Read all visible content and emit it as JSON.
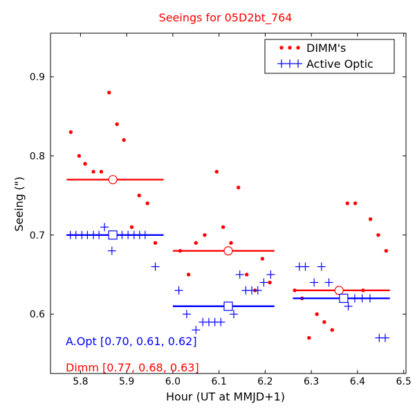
{
  "chart_data": {
    "type": "scatter",
    "title": "Seeings for 05D2bt_764",
    "xlabel": "Hour (UT at MMJD+1)",
    "ylabel": "Seeing (\")",
    "xlim": [
      5.735,
      6.505
    ],
    "ylim": [
      0.525,
      0.955
    ],
    "x_ticks": [
      5.8,
      5.9,
      6.0,
      6.1,
      6.2,
      6.3,
      6.4,
      6.5
    ],
    "x_tick_labels": [
      "5.8",
      "5.9",
      "6.0",
      "6.1",
      "6.2",
      "6.3",
      "6.4",
      "6.5"
    ],
    "y_ticks": [
      0.6,
      0.7,
      0.8,
      0.9
    ],
    "y_tick_labels": [
      "0.6",
      "0.7",
      "0.8",
      "0.9"
    ],
    "legend": {
      "position": "top-right",
      "entries": [
        {
          "label": "DIMM's",
          "marker": "dot",
          "color": "#ff0000"
        },
        {
          "label": "Active Optic",
          "marker": "plus",
          "color": "#0000ff"
        }
      ]
    },
    "annotations": {
      "aopt": "A.Opt [0.70, 0.61, 0.62]",
      "dimm": "Dimm [0.77, 0.68, 0.63]"
    },
    "series": [
      {
        "name": "DIMM's",
        "color": "#ff0000",
        "marker": "dot",
        "points": [
          [
            5.779,
            0.83
          ],
          [
            5.797,
            0.8
          ],
          [
            5.81,
            0.79
          ],
          [
            5.828,
            0.78
          ],
          [
            5.845,
            0.78
          ],
          [
            5.862,
            0.88
          ],
          [
            5.879,
            0.84
          ],
          [
            5.894,
            0.82
          ],
          [
            5.911,
            0.71
          ],
          [
            5.927,
            0.75
          ],
          [
            5.945,
            0.74
          ],
          [
            5.962,
            0.69
          ],
          [
            6.016,
            0.68
          ],
          [
            6.034,
            0.65
          ],
          [
            6.05,
            0.69
          ],
          [
            6.069,
            0.7
          ],
          [
            6.095,
            0.78
          ],
          [
            6.109,
            0.71
          ],
          [
            6.126,
            0.69
          ],
          [
            6.142,
            0.76
          ],
          [
            6.16,
            0.65
          ],
          [
            6.178,
            0.63
          ],
          [
            6.194,
            0.67
          ],
          [
            6.21,
            0.64
          ],
          [
            6.264,
            0.63
          ],
          [
            6.28,
            0.62
          ],
          [
            6.295,
            0.57
          ],
          [
            6.312,
            0.6
          ],
          [
            6.328,
            0.59
          ],
          [
            6.345,
            0.58
          ],
          [
            6.362,
            0.63
          ],
          [
            6.378,
            0.74
          ],
          [
            6.395,
            0.74
          ],
          [
            6.412,
            0.63
          ],
          [
            6.428,
            0.72
          ],
          [
            6.445,
            0.7
          ],
          [
            6.462,
            0.68
          ]
        ]
      },
      {
        "name": "Active Optic",
        "color": "#0000ff",
        "marker": "plus",
        "points": [
          [
            5.778,
            0.7
          ],
          [
            5.79,
            0.7
          ],
          [
            5.803,
            0.7
          ],
          [
            5.815,
            0.7
          ],
          [
            5.828,
            0.7
          ],
          [
            5.84,
            0.7
          ],
          [
            5.852,
            0.71
          ],
          [
            5.865,
            0.7
          ],
          [
            5.878,
            0.7
          ],
          [
            5.868,
            0.68
          ],
          [
            5.89,
            0.7
          ],
          [
            5.903,
            0.7
          ],
          [
            5.916,
            0.7
          ],
          [
            5.928,
            0.7
          ],
          [
            5.94,
            0.7
          ],
          [
            5.962,
            0.66
          ],
          [
            6.013,
            0.63
          ],
          [
            6.03,
            0.6
          ],
          [
            6.05,
            0.58
          ],
          [
            6.065,
            0.59
          ],
          [
            6.078,
            0.59
          ],
          [
            6.091,
            0.59
          ],
          [
            6.104,
            0.59
          ],
          [
            6.132,
            0.6
          ],
          [
            6.145,
            0.65
          ],
          [
            6.158,
            0.63
          ],
          [
            6.171,
            0.63
          ],
          [
            6.184,
            0.63
          ],
          [
            6.197,
            0.64
          ],
          [
            6.212,
            0.65
          ],
          [
            6.274,
            0.66
          ],
          [
            6.287,
            0.66
          ],
          [
            6.306,
            0.64
          ],
          [
            6.322,
            0.66
          ],
          [
            6.338,
            0.64
          ],
          [
            6.355,
            0.63
          ],
          [
            6.38,
            0.61
          ],
          [
            6.394,
            0.62
          ],
          [
            6.41,
            0.62
          ],
          [
            6.427,
            0.62
          ],
          [
            6.447,
            0.57
          ],
          [
            6.46,
            0.57
          ]
        ]
      }
    ],
    "averages": [
      {
        "name": "DIMM's",
        "color": "#ff0000",
        "marker": "open-circle",
        "segments": [
          {
            "x_start": 5.77,
            "x_end": 5.98,
            "x_mid": 5.87,
            "value": 0.77
          },
          {
            "x_start": 6.0,
            "x_end": 6.22,
            "x_mid": 6.12,
            "value": 0.68
          },
          {
            "x_start": 6.26,
            "x_end": 6.47,
            "x_mid": 6.36,
            "value": 0.63
          }
        ]
      },
      {
        "name": "Active Optic",
        "color": "#0000ff",
        "marker": "open-square",
        "segments": [
          {
            "x_start": 5.77,
            "x_end": 5.98,
            "x_mid": 5.87,
            "value": 0.7
          },
          {
            "x_start": 6.0,
            "x_end": 6.22,
            "x_mid": 6.12,
            "value": 0.61
          },
          {
            "x_start": 6.26,
            "x_end": 6.47,
            "x_mid": 6.37,
            "value": 0.62
          }
        ]
      }
    ]
  }
}
